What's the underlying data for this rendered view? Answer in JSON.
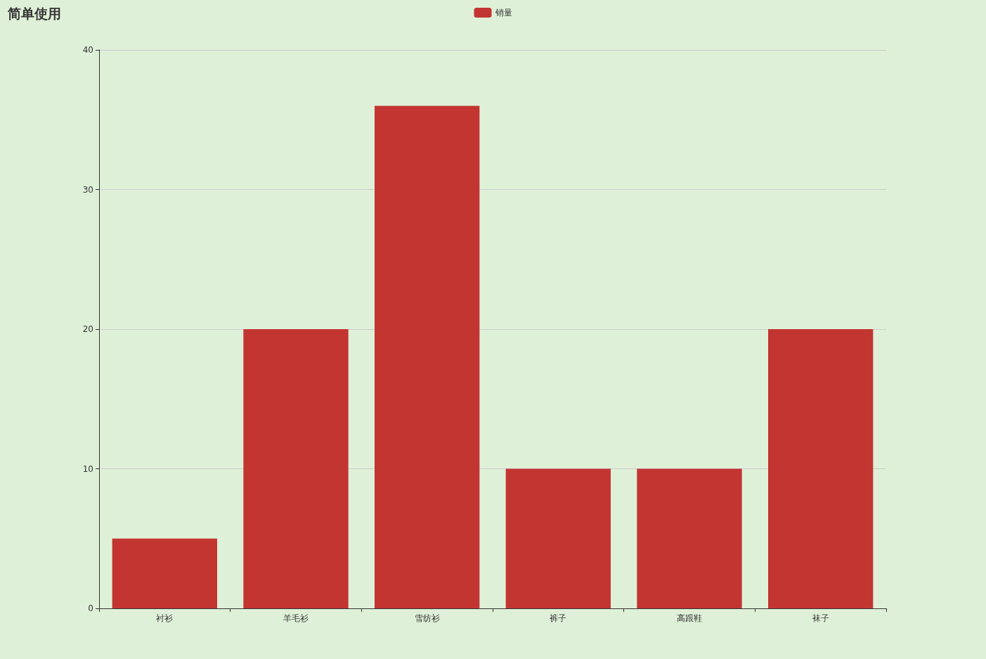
{
  "chart_data": {
    "type": "bar",
    "title": "简单使用",
    "categories": [
      "衬衫",
      "羊毛衫",
      "雪纺衫",
      "裤子",
      "高跟鞋",
      "袜子"
    ],
    "series": [
      {
        "name": "销量",
        "color": "#c23531",
        "values": [
          5,
          20,
          36,
          10,
          10,
          20
        ]
      }
    ],
    "ylim": [
      0,
      40
    ],
    "yticks": [
      0,
      10,
      20,
      30,
      40
    ],
    "grid": "y",
    "legend": "top"
  }
}
